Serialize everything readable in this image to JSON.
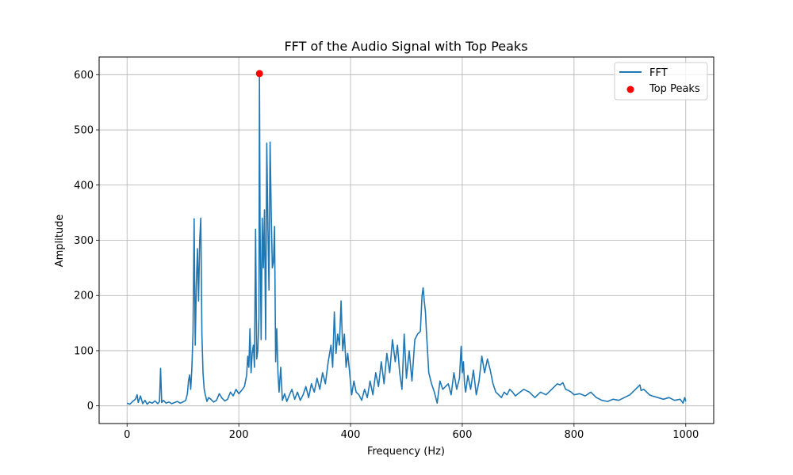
{
  "chart_data": {
    "type": "line",
    "title": "FFT of the Audio Signal with Top Peaks",
    "xlabel": "Frequency (Hz)",
    "ylabel": "Amplitude",
    "xlim": [
      -50,
      1050
    ],
    "ylim": [
      -32,
      632
    ],
    "xticks": [
      0,
      200,
      400,
      600,
      800,
      1000
    ],
    "yticks": [
      0,
      100,
      200,
      300,
      400,
      500,
      600
    ],
    "grid": true,
    "legend_position": "top-right",
    "series": [
      {
        "name": "FFT",
        "type": "line",
        "color": "#1f77b4",
        "x": [
          0,
          5,
          10,
          15,
          18,
          20,
          24,
          28,
          32,
          36,
          40,
          45,
          50,
          55,
          58,
          60,
          62,
          65,
          70,
          75,
          80,
          85,
          90,
          95,
          100,
          105,
          108,
          110,
          112,
          114,
          116,
          118,
          120,
          122,
          124,
          126,
          128,
          130,
          132,
          134,
          136,
          138,
          140,
          143,
          146,
          150,
          155,
          160,
          165,
          170,
          175,
          180,
          185,
          190,
          195,
          200,
          205,
          210,
          214,
          216,
          218,
          220,
          222,
          224,
          226,
          228,
          230,
          232,
          234,
          236,
          237,
          238,
          240,
          242,
          244,
          246,
          248,
          250,
          252,
          254,
          256,
          258,
          260,
          262,
          264,
          266,
          268,
          270,
          272,
          275,
          278,
          282,
          286,
          290,
          295,
          300,
          305,
          310,
          315,
          320,
          325,
          330,
          335,
          340,
          345,
          350,
          355,
          360,
          365,
          368,
          371,
          374,
          377,
          380,
          383,
          386,
          389,
          392,
          395,
          398,
          402,
          406,
          410,
          415,
          420,
          425,
          430,
          435,
          440,
          445,
          450,
          455,
          460,
          465,
          470,
          475,
          480,
          484,
          488,
          492,
          496,
          500,
          505,
          510,
          515,
          520,
          525,
          528,
          530,
          532,
          534,
          536,
          538,
          540,
          545,
          550,
          555,
          560,
          565,
          570,
          575,
          580,
          585,
          590,
          595,
          598,
          600,
          602,
          604,
          606,
          610,
          615,
          620,
          625,
          630,
          635,
          640,
          645,
          650,
          655,
          660,
          665,
          670,
          675,
          680,
          685,
          690,
          695,
          700,
          710,
          720,
          730,
          740,
          750,
          760,
          770,
          775,
          780,
          785,
          790,
          795,
          800,
          810,
          820,
          830,
          840,
          850,
          860,
          870,
          880,
          890,
          900,
          905,
          910,
          915,
          918,
          920,
          925,
          930,
          935,
          940,
          950,
          960,
          970,
          980,
          990,
          995,
          998,
          1000
        ],
        "values": [
          5,
          3,
          8,
          12,
          20,
          6,
          18,
          4,
          10,
          3,
          7,
          5,
          9,
          4,
          8,
          68,
          6,
          10,
          5,
          7,
          4,
          6,
          8,
          5,
          7,
          10,
          22,
          45,
          56,
          30,
          70,
          132,
          339,
          110,
          220,
          285,
          190,
          298,
          340,
          130,
          60,
          30,
          20,
          8,
          15,
          12,
          7,
          10,
          22,
          14,
          9,
          12,
          25,
          18,
          30,
          22,
          28,
          35,
          55,
          90,
          70,
          140,
          60,
          95,
          110,
          70,
          320,
          85,
          100,
          160,
          602,
          335,
          120,
          340,
          250,
          355,
          120,
          476,
          330,
          210,
          478,
          350,
          250,
          260,
          325,
          80,
          140,
          60,
          25,
          70,
          10,
          22,
          8,
          18,
          30,
          12,
          25,
          10,
          20,
          35,
          15,
          40,
          25,
          50,
          30,
          60,
          40,
          80,
          110,
          70,
          170,
          95,
          130,
          110,
          190,
          100,
          130,
          70,
          95,
          65,
          20,
          45,
          25,
          20,
          10,
          30,
          15,
          45,
          20,
          60,
          35,
          80,
          40,
          95,
          60,
          120,
          80,
          110,
          60,
          30,
          130,
          50,
          100,
          45,
          120,
          130,
          135,
          200,
          214,
          190,
          170,
          130,
          95,
          60,
          40,
          25,
          5,
          45,
          30,
          35,
          40,
          20,
          60,
          30,
          50,
          108,
          60,
          80,
          40,
          25,
          55,
          30,
          65,
          20,
          45,
          90,
          60,
          85,
          65,
          40,
          25,
          20,
          15,
          25,
          20,
          30,
          25,
          18,
          22,
          30,
          25,
          15,
          25,
          20,
          30,
          40,
          38,
          42,
          30,
          28,
          25,
          20,
          22,
          18,
          25,
          15,
          10,
          8,
          12,
          10,
          15,
          20,
          25,
          30,
          35,
          38,
          28,
          30,
          25,
          20,
          18,
          15,
          12,
          15,
          10,
          12,
          5,
          15,
          8
        ]
      },
      {
        "name": "Top Peaks",
        "type": "scatter",
        "color": "#ff0000",
        "x": [
          237
        ],
        "values": [
          602
        ]
      }
    ]
  }
}
